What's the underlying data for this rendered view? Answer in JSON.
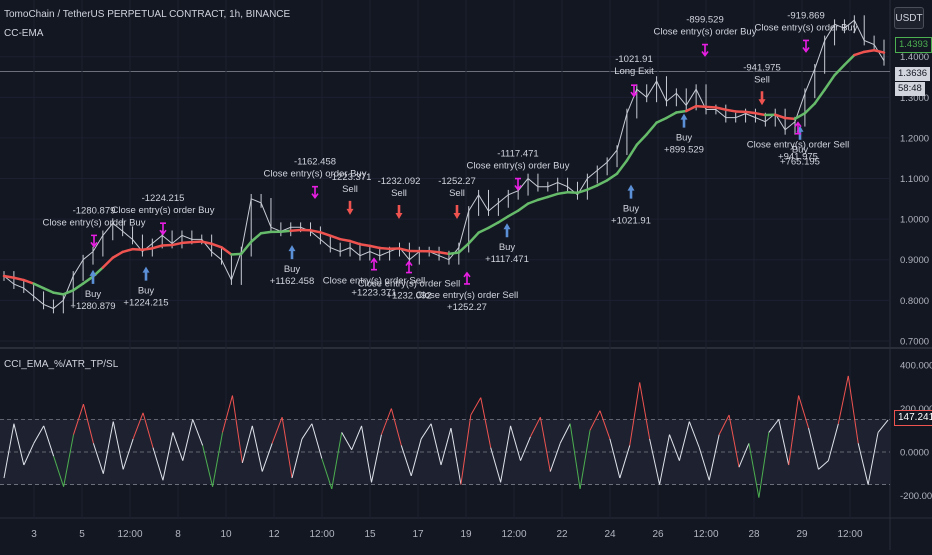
{
  "header": {
    "title": "TomoChain / TetherUS PERPETUAL CONTRACT, 1h, BINANCE",
    "indicator": "CC-EMA",
    "oscillator": "CCI_EMA_%/ATR_TP/SL",
    "currency_button": "USDT"
  },
  "price_tags": {
    "ema": "1.4393",
    "last_price": "1.3636",
    "countdown": "58:48",
    "osc_value": "147.2417"
  },
  "colors": {
    "background": "#131722",
    "candle": "#c8ccd4",
    "ema_up": "#66bb6a",
    "ema_down": "#ef5350",
    "entry_marker": "#e91ee3",
    "buy_arrow": "#5b8fd6",
    "sell_arrow": "#ef5350"
  },
  "chart_data": [
    {
      "type": "line",
      "name": "price",
      "y_ticks": [
        "1.4000",
        "1.3000",
        "1.2000",
        "1.1000",
        "1.0000",
        "0.9000",
        "0.8000",
        "0.7000"
      ],
      "ylim": [
        0.69,
        1.52
      ],
      "x_ticks": [
        "3",
        "5",
        "12:00",
        "8",
        "10",
        "12",
        "12:00",
        "15",
        "17",
        "19",
        "12:00",
        "22",
        "24",
        "26",
        "12:00",
        "28",
        "29",
        "12:00"
      ],
      "x_index": [
        0,
        10,
        20,
        30,
        40,
        50,
        60,
        70,
        80,
        90,
        100,
        110,
        120,
        130,
        140,
        150,
        160,
        170,
        180,
        190,
        200,
        210,
        220,
        230,
        240,
        250,
        260,
        270,
        280,
        290,
        300,
        310,
        320,
        330,
        340,
        350,
        360,
        370,
        380,
        390,
        400,
        410,
        420,
        430,
        440,
        450,
        460,
        470,
        480,
        490,
        500,
        510,
        520,
        530,
        540,
        550,
        560,
        570,
        580,
        590,
        600,
        610,
        620,
        630,
        640,
        650,
        660,
        670,
        680,
        690,
        700,
        710,
        720,
        730,
        740,
        750,
        760,
        770,
        780,
        790,
        800,
        810,
        820,
        830,
        840,
        850,
        860,
        870,
        880,
        890
      ],
      "close": [
        0.86,
        0.84,
        0.83,
        0.81,
        0.79,
        0.78,
        0.8,
        0.86,
        0.9,
        0.92,
        0.96,
        0.99,
        0.97,
        0.95,
        0.92,
        0.94,
        0.96,
        0.94,
        0.96,
        0.95,
        0.95,
        0.92,
        0.9,
        0.85,
        0.92,
        1.05,
        1.04,
        0.98,
        0.97,
        0.98,
        0.98,
        0.97,
        0.95,
        0.93,
        0.92,
        0.93,
        0.91,
        0.92,
        0.91,
        0.92,
        0.93,
        0.9,
        0.92,
        0.92,
        0.91,
        0.9,
        0.93,
        1.02,
        1.06,
        1.02,
        1.04,
        1.06,
        1.07,
        1.1,
        1.08,
        1.08,
        1.09,
        1.08,
        1.06,
        1.1,
        1.12,
        1.14,
        1.17,
        1.26,
        1.32,
        1.3,
        1.34,
        1.29,
        1.31,
        1.28,
        1.32,
        1.27,
        1.27,
        1.25,
        1.25,
        1.26,
        1.25,
        1.24,
        1.26,
        1.22,
        1.24,
        1.31,
        1.37,
        1.44,
        1.48,
        1.47,
        1.49,
        1.44,
        1.43,
        1.39
      ],
      "ema_color": [
        "down",
        "down",
        "down",
        "down",
        "up",
        "up",
        "up",
        "up",
        "up",
        "up",
        "up",
        "down",
        "down",
        "down",
        "down",
        "down",
        "down",
        "down",
        "down",
        "down",
        "down",
        "down",
        "down",
        "down",
        "up",
        "up",
        "up",
        "up",
        "up",
        "up",
        "down",
        "down",
        "down",
        "down",
        "down",
        "down",
        "down",
        "down",
        "down",
        "down",
        "down",
        "down",
        "down",
        "down",
        "down",
        "down",
        "up",
        "up",
        "up",
        "up",
        "up",
        "up",
        "up",
        "up",
        "up",
        "up",
        "up",
        "up",
        "up",
        "up",
        "up",
        "up",
        "up",
        "up",
        "up",
        "up",
        "up",
        "up",
        "up",
        "up",
        "down",
        "down",
        "down",
        "down",
        "down",
        "down",
        "down",
        "down",
        "up",
        "down",
        "down",
        "up",
        "up",
        "up",
        "up",
        "up",
        "up",
        "down",
        "down",
        "down"
      ],
      "buy_labels": [
        {
          "price": 0.875,
          "text1": "Buy",
          "text2": "+1280.879"
        },
        {
          "price": 0.883,
          "text1": "Buy",
          "text2": "+1224.215"
        },
        {
          "price": 0.936,
          "text1": "Buy",
          "text2": "+1162.458"
        },
        {
          "price": 0.99,
          "text1": "Buy",
          "text2": "+1117.471"
        },
        {
          "price": 1.085,
          "text1": "Buy",
          "text2": "+1021.91"
        },
        {
          "price": 1.26,
          "text1": "Buy",
          "text2": "+899.529"
        },
        {
          "price": 1.23,
          "text1": "Buy",
          "text2": "+765.195"
        }
      ],
      "close_buy_labels": [
        {
          "price": 0.96,
          "text1": "-1280.879",
          "text2": "Close entry(s) order Buy"
        },
        {
          "price": 0.99,
          "text1": "-1224.215",
          "text2": "Close entry(s) order Buy"
        },
        {
          "price": 1.08,
          "text1": "-1162.458",
          "text2": "Close entry(s) order Buy"
        },
        {
          "price": 1.1,
          "text1": "-1117.471",
          "text2": "Close entry(s) order Buy"
        },
        {
          "price": 1.43,
          "text1": "-899.529",
          "text2": "Close entry(s) order Buy"
        },
        {
          "price": 1.44,
          "text1": "-919.869",
          "text2": "Close entry(s) order Buy"
        }
      ],
      "sell_labels": [
        {
          "price": 1.04,
          "text1": "-1223.371",
          "text2": "Sell"
        },
        {
          "price": 1.03,
          "text1": "-1232.092",
          "text2": "Sell"
        },
        {
          "price": 1.03,
          "text1": "-1252.27",
          "text2": "Sell"
        },
        {
          "price": 1.31,
          "text1": "-941.975",
          "text2": "Sell"
        }
      ],
      "long_exit_label": {
        "price": 1.33,
        "text1": "-1021.91",
        "text2": "Long Exit"
      },
      "close_sell_labels": [
        {
          "price": 0.905,
          "text1": "Close entry(s) order Sell",
          "text2": "+1223.371"
        },
        {
          "price": 0.898,
          "text1": "Close entry(s) order Sell",
          "text2": "+1232.092"
        },
        {
          "price": 0.87,
          "text1": "Close entry(s) order Sell",
          "text2": "+1252.27"
        },
        {
          "price": 1.24,
          "text1": "Close entry(s) order Sell",
          "text2": "+941.975"
        }
      ]
    },
    {
      "type": "line",
      "name": "oscillator",
      "y_ticks": [
        "400.0000",
        "200.0000",
        "0.0000",
        "-200.0000"
      ],
      "ylim": [
        -290,
        460
      ],
      "bands": [
        150,
        -150
      ],
      "values": [
        -120,
        130,
        -60,
        40,
        120,
        -20,
        -160,
        80,
        220,
        40,
        -100,
        140,
        -80,
        60,
        180,
        20,
        -130,
        90,
        -40,
        150,
        30,
        -160,
        90,
        260,
        -50,
        120,
        -90,
        40,
        160,
        -120,
        60,
        130,
        -30,
        -170,
        90,
        10,
        120,
        -140,
        80,
        200,
        30,
        -110,
        60,
        130,
        -60,
        110,
        -150,
        170,
        250,
        20,
        -140,
        120,
        -40,
        70,
        160,
        -90,
        40,
        130,
        -170,
        100,
        190,
        60,
        -120,
        30,
        320,
        60,
        -150,
        80,
        -40,
        140,
        20,
        -130,
        80,
        170,
        -70,
        40,
        -210,
        90,
        150,
        -60,
        260,
        110,
        -80,
        -40,
        130,
        350,
        40,
        -150,
        90,
        147
      ]
    }
  ]
}
